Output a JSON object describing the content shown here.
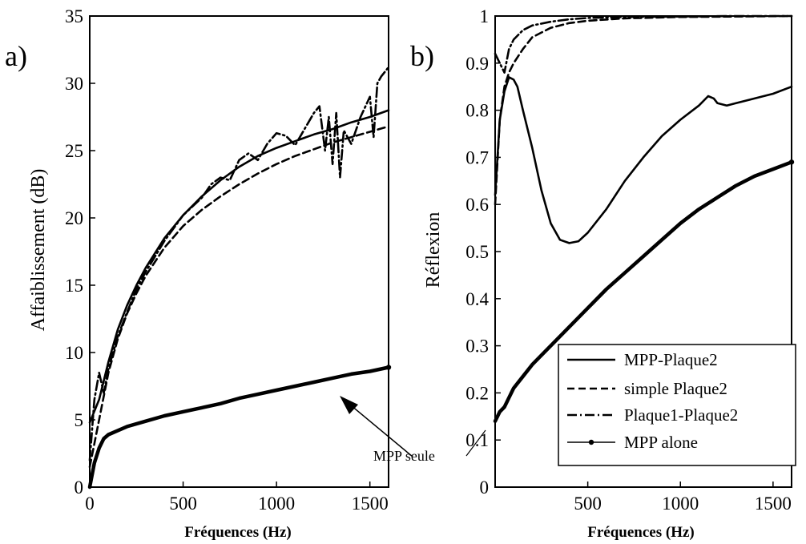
{
  "chart_data": [
    {
      "type": "line",
      "panel_label": "a)",
      "xlabel": "Fréquences (Hz)",
      "ylabel": "Affaiblissement (dB)",
      "xlim": [
        0,
        1600
      ],
      "ylim": [
        0,
        35
      ],
      "xticks": [
        "0",
        "500",
        "1000",
        "1500"
      ],
      "yticks": [
        "0",
        "5",
        "10",
        "15",
        "20",
        "25",
        "30",
        "35"
      ],
      "grid": false,
      "series": [
        {
          "id": "mpp_plaque2",
          "style": "solid",
          "x": [
            0,
            50,
            100,
            150,
            200,
            250,
            300,
            400,
            500,
            600,
            700,
            800,
            900,
            1000,
            1100,
            1200,
            1300,
            1400,
            1500,
            1600
          ],
          "y": [
            4.8,
            6.5,
            9.3,
            11.7,
            13.5,
            15.0,
            16.3,
            18.5,
            20.2,
            21.6,
            22.8,
            23.8,
            24.6,
            25.2,
            25.7,
            26.2,
            26.6,
            27.1,
            27.5,
            28.0
          ]
        },
        {
          "id": "simple_plaque2",
          "style": "dashed",
          "x": [
            0,
            50,
            100,
            150,
            200,
            250,
            300,
            400,
            500,
            600,
            700,
            800,
            900,
            1000,
            1100,
            1200,
            1300,
            1400,
            1500,
            1600
          ],
          "y": [
            1.5,
            5.0,
            8.5,
            11.0,
            12.9,
            14.4,
            15.7,
            17.8,
            19.4,
            20.6,
            21.6,
            22.5,
            23.3,
            24.0,
            24.6,
            25.1,
            25.6,
            26.0,
            26.4,
            26.8
          ]
        },
        {
          "id": "plaque1_plaque2",
          "style": "dashdot",
          "x": [
            0,
            25,
            50,
            75,
            100,
            150,
            200,
            250,
            300,
            400,
            500,
            600,
            650,
            700,
            750,
            800,
            850,
            900,
            950,
            1000,
            1050,
            1100,
            1150,
            1200,
            1230,
            1260,
            1280,
            1300,
            1320,
            1340,
            1360,
            1400,
            1450,
            1500,
            1520,
            1540,
            1560,
            1600
          ],
          "y": [
            2.0,
            6.5,
            8.5,
            7.0,
            8.8,
            11.2,
            13.0,
            14.7,
            16.0,
            18.3,
            20.2,
            21.5,
            22.5,
            23.0,
            22.8,
            24.3,
            24.8,
            24.3,
            25.5,
            26.3,
            26.1,
            25.4,
            26.6,
            27.8,
            28.3,
            25.0,
            27.5,
            24.0,
            27.8,
            23.0,
            26.5,
            25.5,
            27.5,
            29.0,
            26.0,
            30.0,
            30.5,
            31.2
          ]
        },
        {
          "id": "mpp_alone",
          "style": "solid-dot",
          "x": [
            0,
            25,
            50,
            75,
            100,
            150,
            200,
            300,
            400,
            500,
            600,
            700,
            800,
            900,
            1000,
            1100,
            1200,
            1300,
            1400,
            1500,
            1600
          ],
          "y": [
            0.0,
            1.8,
            2.9,
            3.6,
            3.9,
            4.2,
            4.5,
            4.9,
            5.3,
            5.6,
            5.9,
            6.2,
            6.6,
            6.9,
            7.2,
            7.5,
            7.8,
            8.1,
            8.4,
            8.6,
            8.9
          ]
        }
      ],
      "annotation": {
        "text": "MPP seule",
        "points_to": [
          1350,
          7.2
        ]
      }
    },
    {
      "type": "line",
      "panel_label": "b)",
      "xlabel": "Fréquences (Hz)",
      "ylabel": "Réflexion",
      "xlim": [
        0,
        1600
      ],
      "ylim": [
        0,
        1
      ],
      "xticks": [
        "500",
        "1000",
        "1500"
      ],
      "yticks": [
        "0",
        "0.1",
        "0.2",
        "0.3",
        "0.4",
        "0.5",
        "0.6",
        "0.7",
        "0.8",
        "0.9",
        "1"
      ],
      "grid": false,
      "legend_position": "bottom-right",
      "legend": [
        "MPP-Plaque2",
        "simple Plaque2",
        "Plaque1-Plaque2",
        "MPP alone"
      ],
      "series": [
        {
          "id": "mpp_plaque2",
          "name": "MPP-Plaque2",
          "style": "solid",
          "x": [
            0,
            25,
            50,
            75,
            100,
            120,
            150,
            200,
            250,
            300,
            350,
            400,
            450,
            500,
            600,
            700,
            800,
            900,
            1000,
            1100,
            1150,
            1180,
            1200,
            1250,
            1300,
            1400,
            1500,
            1600
          ],
          "y": [
            0.62,
            0.78,
            0.84,
            0.87,
            0.865,
            0.85,
            0.8,
            0.72,
            0.63,
            0.56,
            0.525,
            0.518,
            0.522,
            0.54,
            0.59,
            0.65,
            0.7,
            0.745,
            0.78,
            0.81,
            0.83,
            0.825,
            0.815,
            0.81,
            0.815,
            0.825,
            0.835,
            0.85
          ]
        },
        {
          "id": "simple_plaque2",
          "name": "simple Plaque2",
          "style": "dashed",
          "x": [
            0,
            25,
            50,
            75,
            100,
            150,
            200,
            300,
            400,
            500,
            700,
            1000,
            1300,
            1600
          ],
          "y": [
            0.6,
            0.78,
            0.85,
            0.88,
            0.9,
            0.93,
            0.955,
            0.975,
            0.985,
            0.99,
            0.995,
            0.998,
            0.999,
            1.0
          ]
        },
        {
          "id": "plaque1_plaque2",
          "name": "Plaque1-Plaque2",
          "style": "dashdot",
          "x": [
            0,
            25,
            50,
            75,
            100,
            150,
            200,
            300,
            400,
            500,
            700,
            1000,
            1300,
            1600
          ],
          "y": [
            0.92,
            0.9,
            0.88,
            0.93,
            0.95,
            0.97,
            0.98,
            0.988,
            0.993,
            0.996,
            0.998,
            0.999,
            1.0,
            1.0
          ]
        },
        {
          "id": "mpp_alone",
          "name": "MPP alone",
          "style": "solid-dot",
          "x": [
            0,
            25,
            50,
            75,
            100,
            150,
            200,
            300,
            400,
            500,
            600,
            700,
            800,
            900,
            1000,
            1100,
            1200,
            1300,
            1400,
            1500,
            1600
          ],
          "y": [
            0.14,
            0.16,
            0.17,
            0.19,
            0.21,
            0.235,
            0.26,
            0.3,
            0.34,
            0.38,
            0.42,
            0.455,
            0.49,
            0.525,
            0.56,
            0.59,
            0.615,
            0.64,
            0.66,
            0.675,
            0.69
          ]
        }
      ]
    }
  ]
}
